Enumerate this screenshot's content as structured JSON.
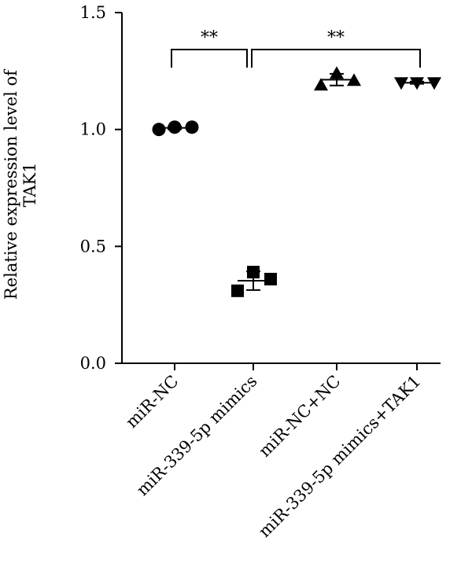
{
  "chart_data": {
    "type": "scatter",
    "ylabel_lines": [
      "Relative expression level of",
      "TAK1"
    ],
    "ylim": [
      0.0,
      1.5
    ],
    "yticks": [
      {
        "value": 0.0,
        "label": "0.0"
      },
      {
        "value": 0.5,
        "label": "0.5"
      },
      {
        "value": 1.0,
        "label": "1.0"
      },
      {
        "value": 1.5,
        "label": "1.5"
      }
    ],
    "categories": [
      "miR-NC",
      "miR-339-5p mimics",
      "miR-NC+NC",
      "miR-339-5p mimics+TAK1"
    ],
    "groups": [
      {
        "category": "miR-NC",
        "marker": "circle",
        "points": [
          1.0,
          1.01,
          1.01
        ],
        "mean": 1.007,
        "sd": 0.006
      },
      {
        "category": "miR-339-5p mimics",
        "marker": "square",
        "points": [
          0.31,
          0.39,
          0.36
        ],
        "mean": 0.353,
        "sd": 0.04
      },
      {
        "category": "miR-NC+NC",
        "marker": "triangle-up",
        "points": [
          1.19,
          1.24,
          1.21
        ],
        "mean": 1.213,
        "sd": 0.025
      },
      {
        "category": "miR-339-5p mimics+TAK1",
        "marker": "triangle-down",
        "points": [
          1.2,
          1.2,
          1.2
        ],
        "mean": 1.2,
        "sd": 0.005
      }
    ],
    "significance": [
      {
        "from": 0,
        "to": 1,
        "label": "**"
      },
      {
        "from": 1,
        "to": 3,
        "label": "**"
      }
    ],
    "grid": false,
    "legend": "none"
  }
}
